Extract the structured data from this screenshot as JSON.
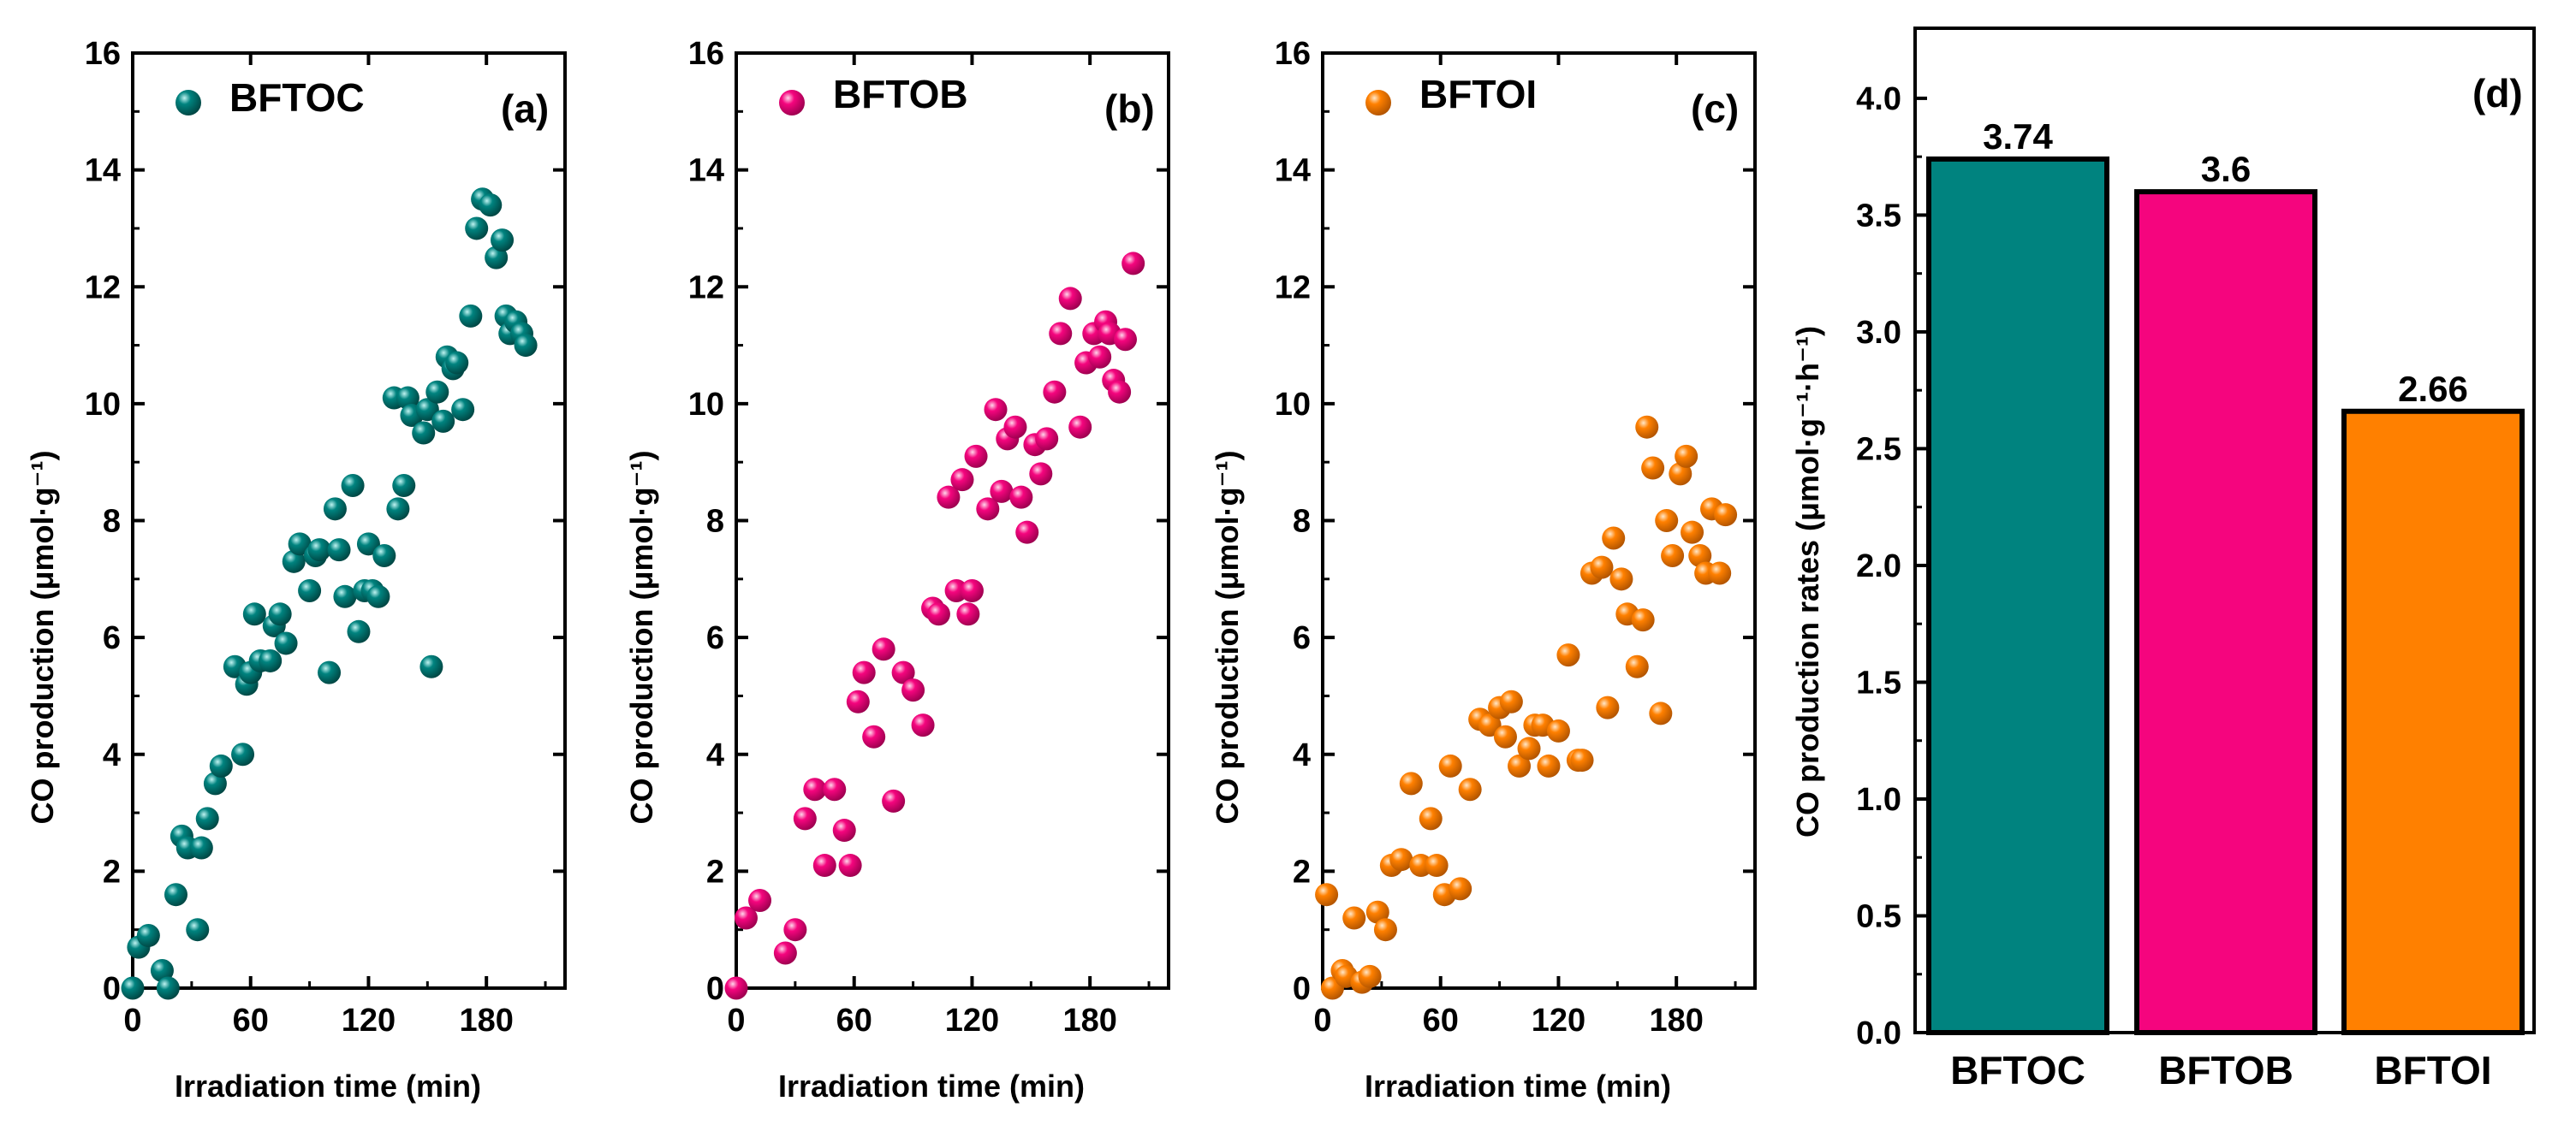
{
  "chart_data": [
    {
      "type": "scatter",
      "panel_label": "(a)",
      "legend": "BFTOC",
      "color": "#00837f",
      "xlabel": "Irradiation time (min)",
      "ylabel": "CO production (μmol·g⁻¹)",
      "xlim": [
        0,
        220
      ],
      "ylim": [
        0,
        16
      ],
      "xticks": [
        0,
        60,
        120,
        180
      ],
      "yticks": [
        0,
        2,
        4,
        6,
        8,
        10,
        12,
        14,
        16
      ],
      "x": [
        0,
        3,
        8,
        15,
        18,
        22,
        25,
        28,
        33,
        35,
        38,
        42,
        45,
        52,
        56,
        58,
        60,
        62,
        65,
        70,
        72,
        75,
        78,
        82,
        85,
        90,
        93,
        95,
        100,
        103,
        105,
        108,
        112,
        115,
        118,
        120,
        122,
        125,
        128,
        133,
        135,
        138,
        140,
        142,
        148,
        150,
        152,
        155,
        158,
        160,
        163,
        165,
        168,
        172,
        175,
        178,
        182,
        185,
        188,
        190,
        192,
        195,
        198,
        200
      ],
      "y": [
        0,
        0.7,
        0.9,
        0.3,
        0,
        1.6,
        2.6,
        2.4,
        1,
        2.4,
        2.9,
        3.5,
        3.8,
        5.5,
        4,
        5.2,
        5.4,
        6.4,
        5.6,
        5.6,
        6.2,
        6.4,
        5.9,
        7.3,
        7.6,
        6.8,
        7.4,
        7.5,
        5.4,
        8.2,
        7.5,
        6.7,
        8.6,
        6.1,
        6.8,
        7.6,
        6.8,
        6.7,
        7.4,
        10.1,
        8.2,
        8.6,
        10.1,
        9.8,
        9.5,
        9.9,
        5.5,
        10.2,
        9.7,
        10.8,
        10.6,
        10.7,
        9.9,
        11.5,
        13.0,
        13.5,
        13.4,
        12.5,
        12.8,
        11.5,
        11.2,
        11.4,
        11.2,
        11.0
      ]
    },
    {
      "type": "scatter",
      "panel_label": "(b)",
      "legend": "BFTOB",
      "color": "#f5057e",
      "xlabel": "Irradiation time (min)",
      "ylabel": "CO production (μmol·g⁻¹)",
      "xlim": [
        0,
        220
      ],
      "ylim": [
        0,
        16
      ],
      "xticks": [
        0,
        60,
        120,
        180
      ],
      "yticks": [
        0,
        2,
        4,
        6,
        8,
        10,
        12,
        14,
        16
      ],
      "x": [
        0,
        5,
        12,
        25,
        30,
        35,
        40,
        45,
        50,
        55,
        58,
        62,
        65,
        70,
        75,
        80,
        85,
        90,
        95,
        100,
        103,
        108,
        112,
        115,
        118,
        120,
        122,
        128,
        132,
        135,
        138,
        142,
        145,
        148,
        152,
        155,
        158,
        162,
        165,
        170,
        175,
        178,
        182,
        185,
        188,
        190,
        192,
        195,
        198,
        202
      ],
      "y": [
        0,
        1.2,
        1.5,
        0.6,
        1.0,
        2.9,
        3.4,
        2.1,
        3.4,
        2.7,
        2.1,
        4.9,
        5.4,
        4.3,
        5.8,
        3.2,
        5.4,
        5.1,
        4.5,
        6.5,
        6.4,
        8.4,
        6.8,
        8.7,
        6.4,
        6.8,
        9.1,
        8.2,
        9.9,
        8.5,
        9.4,
        9.6,
        8.4,
        7.8,
        9.3,
        8.8,
        9.4,
        10.2,
        11.2,
        11.8,
        9.6,
        10.7,
        11.2,
        10.8,
        11.4,
        11.2,
        10.4,
        10.2,
        11.1,
        12.4
      ]
    },
    {
      "type": "scatter",
      "panel_label": "(c)",
      "legend": "BFTOI",
      "color": "#ff8000",
      "xlabel": "Irradiation time (min)",
      "ylabel": "CO production (μmol·g⁻¹)",
      "xlim": [
        0,
        220
      ],
      "ylim": [
        0,
        16
      ],
      "xticks": [
        0,
        60,
        120,
        180
      ],
      "yticks": [
        0,
        2,
        4,
        6,
        8,
        10,
        12,
        14,
        16
      ],
      "x": [
        2,
        5,
        10,
        12,
        16,
        20,
        24,
        28,
        32,
        35,
        40,
        45,
        50,
        55,
        58,
        62,
        65,
        70,
        75,
        80,
        85,
        90,
        93,
        96,
        100,
        105,
        108,
        112,
        115,
        120,
        125,
        130,
        132,
        137,
        142,
        145,
        148,
        152,
        155,
        160,
        163,
        165,
        168,
        172,
        175,
        178,
        182,
        185,
        188,
        192,
        195,
        198,
        202,
        205
      ],
      "y": [
        1.6,
        0,
        0.3,
        0.2,
        1.2,
        0.1,
        0.2,
        1.3,
        1.0,
        2.1,
        2.2,
        3.5,
        2.1,
        2.9,
        2.1,
        1.6,
        3.8,
        1.7,
        3.4,
        4.6,
        4.5,
        4.8,
        4.3,
        4.9,
        3.8,
        4.1,
        4.5,
        4.5,
        3.8,
        4.4,
        5.7,
        3.9,
        3.9,
        7.1,
        7.2,
        4.8,
        7.7,
        7.0,
        6.4,
        5.5,
        6.3,
        9.6,
        8.9,
        4.7,
        8.0,
        7.4,
        8.8,
        9.1,
        7.8,
        7.4,
        7.1,
        8.2,
        7.1,
        8.1
      ]
    },
    {
      "type": "bar",
      "panel_label": "(d)",
      "categories": [
        "BFTOC",
        "BFTOB",
        "BFTOI"
      ],
      "values": [
        3.74,
        3.6,
        2.66
      ],
      "value_labels": [
        "3.74",
        "3.6",
        "2.66"
      ],
      "colors": [
        "#00837f",
        "#f5057e",
        "#ff8000"
      ],
      "xlabel": "",
      "ylabel": "CO production rates (μmol·g⁻¹·h⁻¹)",
      "ylim": [
        0,
        4.3
      ],
      "yticks": [
        "0.0",
        "0.5",
        "1.0",
        "1.5",
        "2.0",
        "2.5",
        "3.0",
        "3.5",
        "4.0"
      ]
    }
  ]
}
